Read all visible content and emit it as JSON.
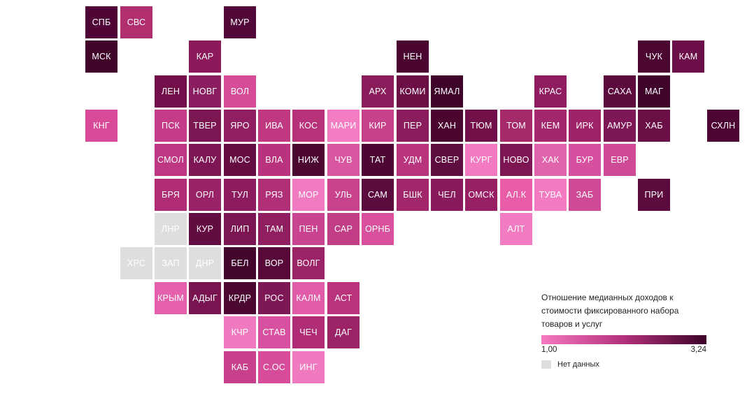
{
  "legend": {
    "title": "Отношение медианных доходов к стоимости фиксированного набора товаров и услуг",
    "min_label": "1,00",
    "max_label": "3,24",
    "nodata_label": "Нет данных",
    "scale_colors": [
      "#f57ac0",
      "#b3307a",
      "#3d0329"
    ],
    "nodata_color": "#dedede"
  },
  "regions": [
    {
      "label": "СПБ",
      "col": 1,
      "row": 0,
      "color": "#4f0536"
    },
    {
      "label": "СВС",
      "col": 2,
      "row": 0,
      "color": "#b12e6f"
    },
    {
      "label": "МУР",
      "col": 5,
      "row": 0,
      "color": "#510838"
    },
    {
      "label": "МСК",
      "col": 1,
      "row": 1,
      "color": "#400428"
    },
    {
      "label": "КАР",
      "col": 4,
      "row": 1,
      "color": "#8c1a5b"
    },
    {
      "label": "НЕН",
      "col": 10,
      "row": 1,
      "color": "#4a0530"
    },
    {
      "label": "ЧУК",
      "col": 17,
      "row": 1,
      "color": "#4b0631"
    },
    {
      "label": "КАМ",
      "col": 18,
      "row": 1,
      "color": "#6d0f49"
    },
    {
      "label": "ЛЕН",
      "col": 3,
      "row": 2,
      "color": "#720f4a"
    },
    {
      "label": "НОВГ",
      "col": 4,
      "row": 2,
      "color": "#891d5f"
    },
    {
      "label": "ВОЛ",
      "col": 5,
      "row": 2,
      "color": "#d64c97"
    },
    {
      "label": "АРХ",
      "col": 9,
      "row": 2,
      "color": "#8a1c5b"
    },
    {
      "label": "КОМИ",
      "col": 10,
      "row": 2,
      "color": "#6c0f47"
    },
    {
      "label": "ЯМАЛ",
      "col": 11,
      "row": 2,
      "color": "#3d0329"
    },
    {
      "label": "КРАС",
      "col": 14,
      "row": 2,
      "color": "#8f1c5e"
    },
    {
      "label": "САХА",
      "col": 16,
      "row": 2,
      "color": "#5c0a3d"
    },
    {
      "label": "МАГ",
      "col": 17,
      "row": 2,
      "color": "#3f042a"
    },
    {
      "label": "КНГ",
      "col": 1,
      "row": 3,
      "color": "#d84a98"
    },
    {
      "label": "ПСК",
      "col": 3,
      "row": 3,
      "color": "#c43c88"
    },
    {
      "label": "ТВЕР",
      "col": 4,
      "row": 3,
      "color": "#7c1653"
    },
    {
      "label": "ЯРО",
      "col": 5,
      "row": 3,
      "color": "#8f1f60"
    },
    {
      "label": "ИВА",
      "col": 6,
      "row": 3,
      "color": "#c0387f"
    },
    {
      "label": "КОС",
      "col": 7,
      "row": 3,
      "color": "#b8327a"
    },
    {
      "label": "МАРИ",
      "col": 8,
      "row": 3,
      "color": "#f47cc2"
    },
    {
      "label": "КИР",
      "col": 9,
      "row": 3,
      "color": "#c6408a"
    },
    {
      "label": "ПЕР",
      "col": 10,
      "row": 3,
      "color": "#8a1d5c"
    },
    {
      "label": "ХАН",
      "col": 11,
      "row": 3,
      "color": "#4a0630"
    },
    {
      "label": "ТЮМ",
      "col": 12,
      "row": 3,
      "color": "#711049"
    },
    {
      "label": "ТОМ",
      "col": 13,
      "row": 3,
      "color": "#a42a6c"
    },
    {
      "label": "КЕМ",
      "col": 14,
      "row": 3,
      "color": "#a3286b"
    },
    {
      "label": "ИРК",
      "col": 15,
      "row": 3,
      "color": "#9e2467"
    },
    {
      "label": "АМУР",
      "col": 16,
      "row": 3,
      "color": "#7e1755"
    },
    {
      "label": "ХАБ",
      "col": 17,
      "row": 3,
      "color": "#6b0f47"
    },
    {
      "label": "СХЛН",
      "col": 19,
      "row": 3,
      "color": "#4d0633"
    },
    {
      "label": "СМОЛ",
      "col": 3,
      "row": 4,
      "color": "#bd3782"
    },
    {
      "label": "КАЛУ",
      "col": 4,
      "row": 4,
      "color": "#7d1653"
    },
    {
      "label": "МОС",
      "col": 5,
      "row": 4,
      "color": "#650d43"
    },
    {
      "label": "ВЛА",
      "col": 6,
      "row": 4,
      "color": "#b9327d"
    },
    {
      "label": "НИЖ",
      "col": 7,
      "row": 4,
      "color": "#4b0632"
    },
    {
      "label": "ЧУВ",
      "col": 8,
      "row": 4,
      "color": "#d956a1"
    },
    {
      "label": "ТАТ",
      "col": 9,
      "row": 4,
      "color": "#4d0633"
    },
    {
      "label": "УДМ",
      "col": 10,
      "row": 4,
      "color": "#b8347c"
    },
    {
      "label": "СВЕР",
      "col": 11,
      "row": 4,
      "color": "#5f0c40"
    },
    {
      "label": "КУРГ",
      "col": 12,
      "row": 4,
      "color": "#f17ac0"
    },
    {
      "label": "НОВО",
      "col": 13,
      "row": 4,
      "color": "#7d1653"
    },
    {
      "label": "ХАК",
      "col": 14,
      "row": 4,
      "color": "#e064ab"
    },
    {
      "label": "БУР",
      "col": 15,
      "row": 4,
      "color": "#d650a0"
    },
    {
      "label": "ЕВР",
      "col": 16,
      "row": 4,
      "color": "#cf4a96"
    },
    {
      "label": "БРЯ",
      "col": 3,
      "row": 5,
      "color": "#b02c74"
    },
    {
      "label": "ОРЛ",
      "col": 4,
      "row": 5,
      "color": "#9a2266"
    },
    {
      "label": "ТУЛ",
      "col": 5,
      "row": 5,
      "color": "#8d1c5e"
    },
    {
      "label": "РЯЗ",
      "col": 6,
      "row": 5,
      "color": "#b12f77"
    },
    {
      "label": "МОР",
      "col": 7,
      "row": 5,
      "color": "#f17bc1"
    },
    {
      "label": "УЛЬ",
      "col": 8,
      "row": 5,
      "color": "#c8428c"
    },
    {
      "label": "САМ",
      "col": 9,
      "row": 5,
      "color": "#5a0a3c"
    },
    {
      "label": "БШК",
      "col": 10,
      "row": 5,
      "color": "#a3286b"
    },
    {
      "label": "ЧЕЛ",
      "col": 11,
      "row": 5,
      "color": "#891b5c"
    },
    {
      "label": "ОМСК",
      "col": 12,
      "row": 5,
      "color": "#991f64"
    },
    {
      "label": "АЛ.К",
      "col": 13,
      "row": 5,
      "color": "#e95ca7"
    },
    {
      "label": "ТУВА",
      "col": 14,
      "row": 5,
      "color": "#f47bc1"
    },
    {
      "label": "ЗАБ",
      "col": 15,
      "row": 5,
      "color": "#d04996"
    },
    {
      "label": "ПРИ",
      "col": 17,
      "row": 5,
      "color": "#5d0b3e"
    },
    {
      "label": "ЛНР",
      "col": 3,
      "row": 6,
      "color": "#dedede"
    },
    {
      "label": "КУР",
      "col": 4,
      "row": 6,
      "color": "#630c42"
    },
    {
      "label": "ЛИП",
      "col": 5,
      "row": 6,
      "color": "#7b1653"
    },
    {
      "label": "ТАМ",
      "col": 6,
      "row": 6,
      "color": "#901e60"
    },
    {
      "label": "ПЕН",
      "col": 7,
      "row": 6,
      "color": "#c84490"
    },
    {
      "label": "САР",
      "col": 8,
      "row": 6,
      "color": "#c13e87"
    },
    {
      "label": "ОРНБ",
      "col": 9,
      "row": 6,
      "color": "#d9509c"
    },
    {
      "label": "АЛТ",
      "col": 13,
      "row": 6,
      "color": "#f27cc1"
    },
    {
      "label": "ХРС",
      "col": 2,
      "row": 7,
      "color": "#dedede"
    },
    {
      "label": "ЗАП",
      "col": 3,
      "row": 7,
      "color": "#dedede"
    },
    {
      "label": "ДНР",
      "col": 4,
      "row": 7,
      "color": "#dedede"
    },
    {
      "label": "БЕЛ",
      "col": 5,
      "row": 7,
      "color": "#44052d"
    },
    {
      "label": "ВОР",
      "col": 6,
      "row": 7,
      "color": "#570a3a"
    },
    {
      "label": "ВОЛГ",
      "col": 7,
      "row": 7,
      "color": "#9d2367"
    },
    {
      "label": "КРЫМ",
      "col": 3,
      "row": 8,
      "color": "#e460ac"
    },
    {
      "label": "АДЫГ",
      "col": 4,
      "row": 8,
      "color": "#7a1451"
    },
    {
      "label": "КРДР",
      "col": 5,
      "row": 8,
      "color": "#4c0632"
    },
    {
      "label": "РОС",
      "col": 6,
      "row": 8,
      "color": "#7e1755"
    },
    {
      "label": "КАЛМ",
      "col": 7,
      "row": 8,
      "color": "#e15ca8"
    },
    {
      "label": "АСТ",
      "col": 8,
      "row": 8,
      "color": "#b9337d"
    },
    {
      "label": "КЧР",
      "col": 5,
      "row": 9,
      "color": "#f07ac0"
    },
    {
      "label": "СТАВ",
      "col": 6,
      "row": 9,
      "color": "#d850a0"
    },
    {
      "label": "ЧЕЧ",
      "col": 7,
      "row": 9,
      "color": "#b02d75"
    },
    {
      "label": "ДАГ",
      "col": 8,
      "row": 9,
      "color": "#9c2366"
    },
    {
      "label": "КАБ",
      "col": 5,
      "row": 10,
      "color": "#c8408c"
    },
    {
      "label": "С.ОС",
      "col": 6,
      "row": 10,
      "color": "#d64c9a"
    },
    {
      "label": "ИНГ",
      "col": 7,
      "row": 10,
      "color": "#f07ac0"
    }
  ]
}
